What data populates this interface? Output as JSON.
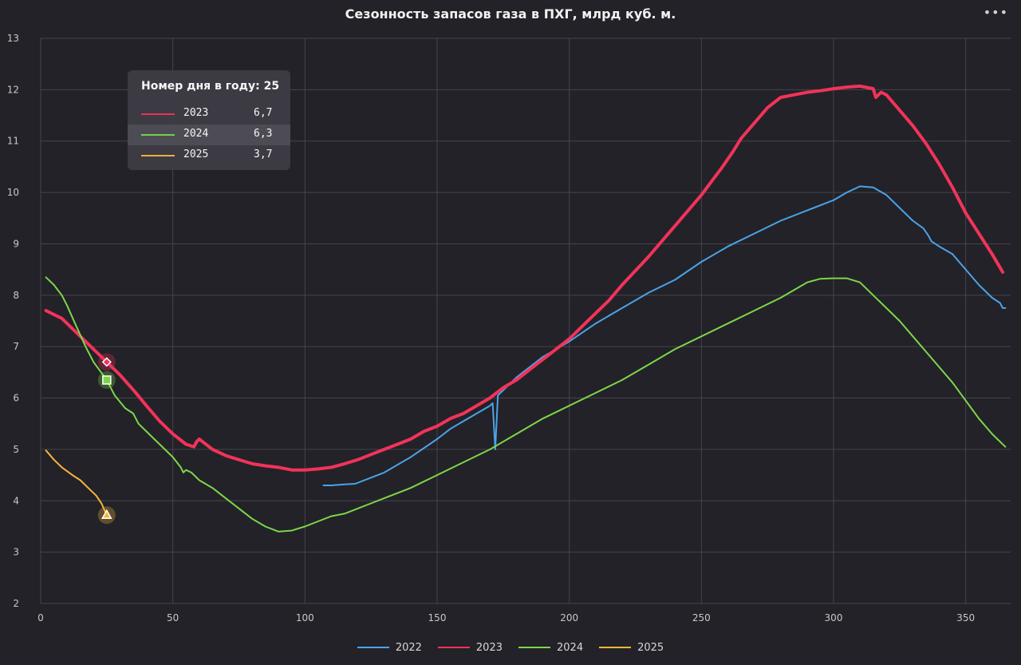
{
  "menu_icon": "more-horizontal-icon",
  "tooltip": {
    "header": "Номер дня в году: 25",
    "rows": [
      {
        "name": "2023",
        "value": "6,7",
        "color": "#f2335a"
      },
      {
        "name": "2024",
        "value": "6,3",
        "color": "#7dd64a"
      },
      {
        "name": "2025",
        "value": "3,7",
        "color": "#f5b53b"
      }
    ]
  },
  "chart_data": {
    "type": "line",
    "title": "Сезонность запасов газа в ПХГ, млрд куб. м.",
    "xlabel": "",
    "ylabel": "",
    "xlim": [
      0,
      367
    ],
    "ylim": [
      2,
      13
    ],
    "xticks": [
      0,
      50,
      100,
      150,
      200,
      250,
      300,
      350
    ],
    "yticks": [
      2,
      3,
      4,
      5,
      6,
      7,
      8,
      9,
      10,
      11,
      12,
      13
    ],
    "grid": true,
    "legend_position": "bottom",
    "highlight_x": 25,
    "series": [
      {
        "name": "2022",
        "color": "#4aa3e8",
        "x": [
          107,
          110,
          115,
          119,
          125,
          130,
          140,
          150,
          155,
          160,
          165,
          170,
          171,
          172,
          173,
          180,
          190,
          200,
          210,
          220,
          230,
          240,
          250,
          260,
          270,
          280,
          290,
          300,
          305,
          310,
          315,
          320,
          325,
          330,
          334,
          336,
          337,
          340,
          345,
          350,
          355,
          360,
          363,
          364,
          365
        ],
        "y": [
          4.3,
          4.3,
          4.32,
          4.33,
          4.45,
          4.55,
          4.85,
          5.2,
          5.4,
          5.55,
          5.7,
          5.85,
          5.9,
          5.0,
          6.05,
          6.4,
          6.8,
          7.1,
          7.45,
          7.75,
          8.05,
          8.3,
          8.65,
          8.95,
          9.2,
          9.45,
          9.65,
          9.85,
          10.0,
          10.12,
          10.1,
          9.95,
          9.7,
          9.45,
          9.3,
          9.15,
          9.05,
          8.95,
          8.8,
          8.5,
          8.2,
          7.95,
          7.85,
          7.75,
          7.75
        ]
      },
      {
        "name": "2023",
        "color": "#f2335a",
        "x": [
          2,
          8,
          15,
          20,
          25,
          30,
          36,
          40,
          45,
          50,
          55,
          58,
          59,
          60,
          65,
          70,
          75,
          80,
          85,
          90,
          95,
          100,
          105,
          110,
          115,
          120,
          125,
          130,
          135,
          140,
          145,
          150,
          155,
          160,
          165,
          170,
          175,
          180,
          185,
          190,
          195,
          200,
          205,
          210,
          215,
          220,
          230,
          240,
          250,
          258,
          262,
          265,
          270,
          275,
          280,
          285,
          290,
          295,
          300,
          305,
          310,
          315,
          316,
          318,
          320,
          325,
          330,
          335,
          340,
          345,
          350,
          355,
          360,
          364
        ],
        "y": [
          7.7,
          7.55,
          7.2,
          6.95,
          6.7,
          6.45,
          6.1,
          5.85,
          5.55,
          5.3,
          5.1,
          5.05,
          5.15,
          5.2,
          5.0,
          4.88,
          4.8,
          4.72,
          4.68,
          4.65,
          4.6,
          4.6,
          4.62,
          4.65,
          4.72,
          4.8,
          4.9,
          5.0,
          5.1,
          5.2,
          5.35,
          5.45,
          5.6,
          5.7,
          5.85,
          6.0,
          6.2,
          6.35,
          6.55,
          6.75,
          6.95,
          7.15,
          7.4,
          7.65,
          7.9,
          8.2,
          8.75,
          9.35,
          9.95,
          10.5,
          10.8,
          11.05,
          11.35,
          11.65,
          11.85,
          11.9,
          11.95,
          11.98,
          12.02,
          12.05,
          12.07,
          12.02,
          11.85,
          11.95,
          11.9,
          11.6,
          11.3,
          10.95,
          10.55,
          10.1,
          9.6,
          9.2,
          8.8,
          8.45
        ]
      },
      {
        "name": "2024",
        "color": "#7dd64a",
        "x": [
          2,
          5,
          8,
          10,
          13,
          17,
          20,
          25,
          28,
          32,
          35,
          37,
          40,
          45,
          50,
          53,
          54,
          55,
          57,
          60,
          65,
          70,
          75,
          80,
          85,
          90,
          95,
          100,
          105,
          110,
          115,
          120,
          125,
          130,
          140,
          150,
          160,
          170,
          180,
          190,
          200,
          210,
          220,
          230,
          240,
          250,
          260,
          270,
          280,
          290,
          295,
          300,
          305,
          310,
          315,
          320,
          325,
          330,
          335,
          340,
          345,
          350,
          355,
          360,
          365
        ],
        "y": [
          8.35,
          8.2,
          8.0,
          7.8,
          7.45,
          7.0,
          6.7,
          6.35,
          6.05,
          5.8,
          5.7,
          5.5,
          5.35,
          5.1,
          4.85,
          4.65,
          4.55,
          4.6,
          4.55,
          4.4,
          4.25,
          4.05,
          3.85,
          3.65,
          3.5,
          3.4,
          3.42,
          3.5,
          3.6,
          3.7,
          3.75,
          3.85,
          3.95,
          4.05,
          4.25,
          4.5,
          4.75,
          5.0,
          5.3,
          5.6,
          5.85,
          6.1,
          6.35,
          6.65,
          6.95,
          7.2,
          7.45,
          7.7,
          7.95,
          8.25,
          8.32,
          8.33,
          8.33,
          8.25,
          8.0,
          7.75,
          7.5,
          7.2,
          6.9,
          6.6,
          6.3,
          5.95,
          5.6,
          5.3,
          5.05
        ]
      },
      {
        "name": "2025",
        "color": "#f5b53b",
        "x": [
          2,
          5,
          8,
          12,
          15,
          18,
          21,
          23,
          25
        ],
        "y": [
          4.98,
          4.8,
          4.65,
          4.5,
          4.4,
          4.25,
          4.1,
          3.95,
          3.72
        ]
      }
    ]
  }
}
